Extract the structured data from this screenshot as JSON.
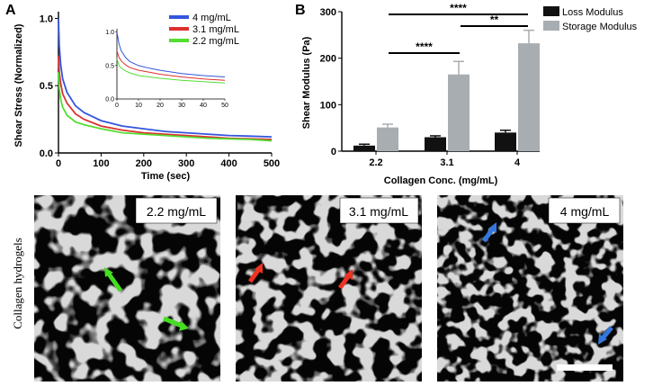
{
  "panel_a": {
    "letter": "A",
    "chart_data": {
      "type": "line",
      "xlabel": "Time (sec)",
      "ylabel": "Shear Stress (Normalized)",
      "xlim": [
        0,
        500
      ],
      "ylim": [
        0,
        1.05
      ],
      "xticks": [
        "0",
        "100",
        "200",
        "300",
        "400",
        "500"
      ],
      "yticks": [
        "0.0",
        "0.5",
        "1.0"
      ],
      "legend_position": "top-right",
      "series": [
        {
          "name": "4 mg/mL",
          "color": "#3355dd",
          "x": [
            0,
            2,
            5,
            10,
            20,
            40,
            60,
            100,
            150,
            200,
            250,
            300,
            350,
            400,
            450,
            500
          ],
          "y": [
            1.0,
            0.8,
            0.66,
            0.55,
            0.45,
            0.35,
            0.3,
            0.24,
            0.2,
            0.18,
            0.16,
            0.15,
            0.14,
            0.13,
            0.125,
            0.12
          ]
        },
        {
          "name": "3.1 mg/mL",
          "color": "#dd3030",
          "x": [
            0,
            2,
            5,
            10,
            20,
            40,
            60,
            100,
            150,
            200,
            250,
            300,
            350,
            400,
            450,
            500
          ],
          "y": [
            0.72,
            0.6,
            0.52,
            0.44,
            0.37,
            0.29,
            0.25,
            0.2,
            0.17,
            0.15,
            0.14,
            0.13,
            0.12,
            0.11,
            0.105,
            0.1
          ]
        },
        {
          "name": "2.2 mg/mL",
          "color": "#55dd33",
          "x": [
            0,
            2,
            5,
            10,
            20,
            40,
            60,
            100,
            150,
            200,
            250,
            300,
            350,
            400,
            450,
            500
          ],
          "y": [
            0.6,
            0.48,
            0.4,
            0.34,
            0.28,
            0.23,
            0.21,
            0.18,
            0.15,
            0.14,
            0.13,
            0.12,
            0.11,
            0.105,
            0.1,
            0.09
          ]
        }
      ],
      "inset": {
        "xlim": [
          0,
          50
        ],
        "ylim": [
          0,
          1.05
        ],
        "xticks": [
          "0",
          "10",
          "20",
          "30",
          "40",
          "50"
        ],
        "yticks": [
          "0.0",
          "0.5",
          "1.0"
        ],
        "series": [
          {
            "name": "4 mg/mL",
            "color": "#3355dd",
            "x": [
              0,
              1,
              2,
              4,
              6,
              10,
              15,
              20,
              30,
              40,
              50
            ],
            "y": [
              1.0,
              0.82,
              0.72,
              0.62,
              0.56,
              0.5,
              0.46,
              0.43,
              0.38,
              0.35,
              0.33
            ]
          },
          {
            "name": "3.1 mg/mL",
            "color": "#dd3030",
            "x": [
              0,
              1,
              2,
              4,
              6,
              10,
              15,
              20,
              30,
              40,
              50
            ],
            "y": [
              0.72,
              0.62,
              0.57,
              0.51,
              0.47,
              0.43,
              0.4,
              0.37,
              0.33,
              0.3,
              0.28
            ]
          },
          {
            "name": "2.2 mg/mL",
            "color": "#55dd33",
            "x": [
              0,
              1,
              2,
              4,
              6,
              10,
              15,
              20,
              30,
              40,
              50
            ],
            "y": [
              0.6,
              0.5,
              0.46,
              0.42,
              0.39,
              0.35,
              0.33,
              0.31,
              0.28,
              0.26,
              0.24
            ]
          }
        ]
      }
    }
  },
  "panel_b": {
    "letter": "B",
    "chart_data": {
      "type": "bar",
      "xlabel": "Collagen Conc. (mg/mL)",
      "ylabel": "Shear Modulus (Pa)",
      "categories": [
        "2.2",
        "3.1",
        "4"
      ],
      "ylim": [
        0,
        300
      ],
      "yticks": [
        "0",
        "100",
        "200",
        "300"
      ],
      "legend_position": "top-right",
      "series": [
        {
          "name": "Loss Modulus",
          "color": "#111111",
          "values": [
            12,
            30,
            40
          ],
          "errors": [
            3,
            3,
            5
          ]
        },
        {
          "name": "Storage Modulus",
          "color": "#a8adb1",
          "values": [
            51,
            165,
            232
          ],
          "errors": [
            7,
            28,
            28
          ]
        }
      ],
      "significance": [
        {
          "label": "****",
          "from": "3.1",
          "to": "4"
        },
        {
          "label": "**",
          "from": "3.1",
          "to": "4"
        },
        {
          "label": "****",
          "from": "2.2",
          "to": "3.1"
        }
      ]
    }
  },
  "micrographs": {
    "side_label": "Collagen hydrogels",
    "arrow_colors": [
      "#44dd22",
      "#ee3322",
      "#3377dd"
    ],
    "images": [
      {
        "label": "2.2 mg/mL",
        "arrow_color": "#44dd22"
      },
      {
        "label": "3.1 mg/mL",
        "arrow_color": "#ee3322"
      },
      {
        "label": "4 mg/mL",
        "arrow_color": "#3377dd"
      }
    ]
  }
}
